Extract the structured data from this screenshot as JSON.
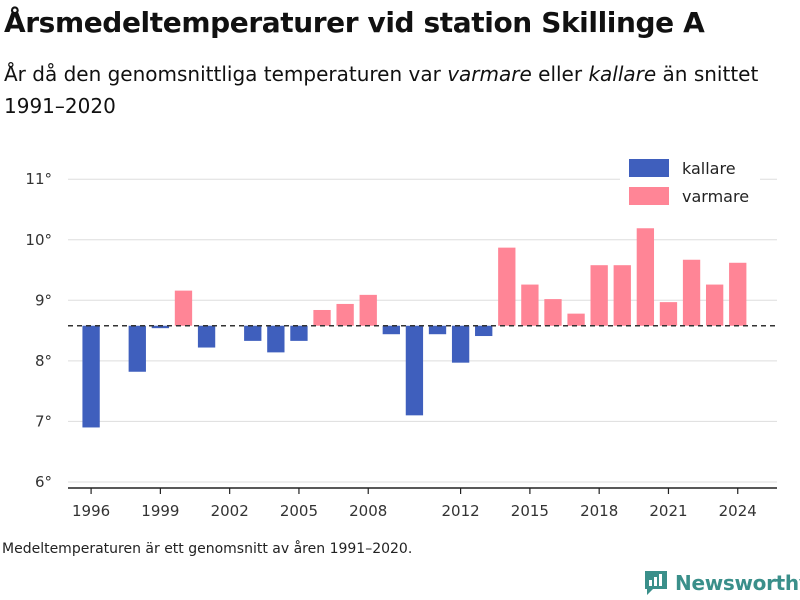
{
  "header": {
    "title": "Årsmedeltemperaturer vid station Skillinge A",
    "subtitle_parts": [
      "År då den genomsnittliga temperaturen var ",
      "varmare",
      " eller ",
      "kallare",
      " än snittet 1991–2020"
    ]
  },
  "footnote": "Medeltemperaturen är ett genomsnitt av åren 1991–2020.",
  "brand": {
    "name": "Newsworthy",
    "icon": "newsworthy-logo-icon",
    "color": "#3a8f8a"
  },
  "chart_data": {
    "type": "bar",
    "baseline": 8.58,
    "baseline_style": "dashed",
    "ylim": [
      5.9,
      11.4
    ],
    "yticks": [
      6,
      7,
      8,
      9,
      10,
      11
    ],
    "ytick_labels": [
      "6°",
      "7°",
      "8°",
      "9°",
      "10°",
      "11°"
    ],
    "xlim": [
      1995,
      2025.7
    ],
    "xticks": [
      1996,
      1999,
      2002,
      2005,
      2008,
      2012,
      2015,
      2018,
      2021,
      2024
    ],
    "grid": "horizontal",
    "legend_position": "top-right",
    "legend": [
      {
        "label": "kallare",
        "color": "#3f5fbd"
      },
      {
        "label": "varmare",
        "color": "#ff8596"
      }
    ],
    "x": [
      1996,
      1998,
      1999,
      2000,
      2001,
      2003,
      2004,
      2005,
      2006,
      2007,
      2008,
      2009,
      2010,
      2011,
      2012,
      2013,
      2014,
      2015,
      2016,
      2017,
      2018,
      2019,
      2020,
      2021,
      2022,
      2023,
      2024
    ],
    "values": [
      6.9,
      7.82,
      8.54,
      9.16,
      8.22,
      8.33,
      8.14,
      8.33,
      8.84,
      8.94,
      9.09,
      8.44,
      7.1,
      8.44,
      7.97,
      8.41,
      9.87,
      9.26,
      9.02,
      8.78,
      9.58,
      9.58,
      10.19,
      8.97,
      9.67,
      9.26,
      9.62
    ]
  }
}
